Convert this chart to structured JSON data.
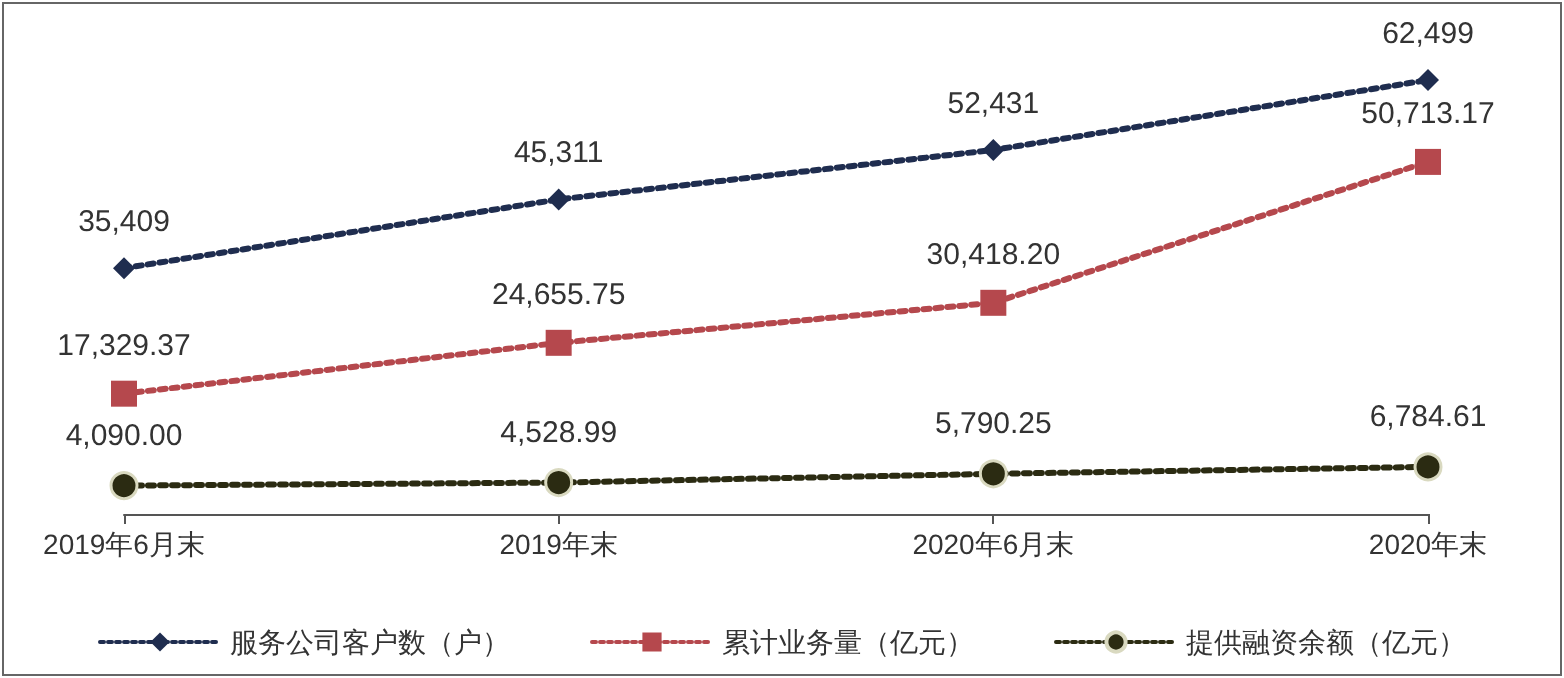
{
  "chart_data": {
    "type": "line",
    "categories": [
      "2019年6月末",
      "2019年末",
      "2020年6月末",
      "2020年末"
    ],
    "series": [
      {
        "name": "服务公司客户数（户）",
        "color": "#1f2d4f",
        "marker": "diamond",
        "values": [
          35409,
          45311,
          52431,
          62499
        ],
        "value_labels": [
          "35,409",
          "45,311",
          "52,431",
          "62,499"
        ]
      },
      {
        "name": "累计业务量（亿元）",
        "color": "#b5484d",
        "marker": "square",
        "values": [
          17329.37,
          24655.75,
          30418.2,
          50713.17
        ],
        "value_labels": [
          "17,329.37",
          "24,655.75",
          "30,418.20",
          "50,713.17"
        ]
      },
      {
        "name": "提供融资余额（亿元）",
        "color": "#2b2b12",
        "marker": "circle",
        "values": [
          4090.0,
          4528.99,
          5790.25,
          6784.61
        ],
        "value_labels": [
          "4,090.00",
          "4,528.99",
          "5,790.25",
          "6,784.61"
        ]
      }
    ],
    "line_style": "dotted",
    "legend": "bottom",
    "grid": false,
    "tick_labels": "x"
  }
}
